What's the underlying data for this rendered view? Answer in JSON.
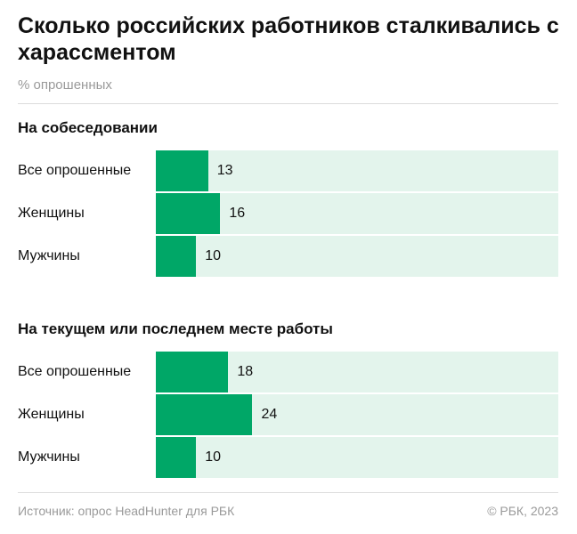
{
  "title": "Сколько российских работников сталкивались с харассментом",
  "subtitle": "% опрошенных",
  "colors": {
    "bar": "#00a767",
    "track": "#e3f4ec"
  },
  "chart_data": {
    "type": "bar",
    "orientation": "horizontal",
    "xlim": [
      0,
      100
    ],
    "groups": [
      {
        "title": "На собеседовании",
        "categories": [
          "Все опрошенные",
          "Женщины",
          "Мужчины"
        ],
        "values": [
          13,
          16,
          10
        ]
      },
      {
        "title": "На текущем или последнем месте работы",
        "categories": [
          "Все опрошенные",
          "Женщины",
          "Мужчины"
        ],
        "values": [
          18,
          24,
          10
        ]
      }
    ]
  },
  "footer": {
    "source": "Источник: опрос HeadHunter для РБК",
    "copyright": "© РБК, 2023"
  }
}
